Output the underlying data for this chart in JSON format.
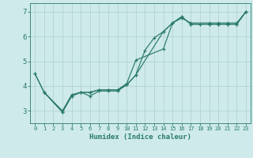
{
  "xlabel": "Humidex (Indice chaleur)",
  "bg_color": "#ceeaea",
  "line_color": "#2a7a6a",
  "grid_color": "#aed0d0",
  "xlim": [
    -0.5,
    23.5
  ],
  "ylim": [
    2.5,
    7.35
  ],
  "yticks": [
    3,
    4,
    5,
    6,
    7
  ],
  "xticks": [
    0,
    1,
    2,
    3,
    4,
    5,
    6,
    7,
    8,
    9,
    10,
    11,
    12,
    13,
    14,
    15,
    16,
    17,
    18,
    19,
    20,
    21,
    22,
    23
  ],
  "series": [
    {
      "x": [
        0,
        1,
        3,
        4,
        5,
        6,
        7,
        8,
        9,
        10,
        11,
        14,
        15,
        16,
        17,
        19,
        20,
        21,
        22,
        23
      ],
      "y": [
        4.5,
        3.75,
        3.0,
        3.65,
        3.75,
        3.75,
        3.85,
        3.85,
        3.85,
        4.1,
        5.05,
        5.5,
        6.55,
        6.75,
        6.55,
        6.55,
        6.55,
        6.55,
        6.55,
        7.0
      ]
    },
    {
      "x": [
        1,
        3,
        4,
        5,
        6,
        7,
        8,
        9,
        10,
        11,
        12,
        13,
        14,
        15,
        16,
        17,
        18,
        19,
        20,
        21,
        22,
        23
      ],
      "y": [
        3.75,
        2.95,
        3.6,
        3.75,
        3.6,
        3.8,
        3.8,
        3.8,
        4.05,
        4.45,
        5.45,
        5.95,
        6.2,
        6.55,
        6.8,
        6.5,
        6.5,
        6.5,
        6.5,
        6.5,
        6.5,
        7.0
      ]
    },
    {
      "x": [
        0,
        1,
        3,
        4,
        5,
        6,
        7,
        8,
        9,
        10,
        11,
        14,
        15,
        16,
        17,
        19,
        20,
        21,
        22,
        23
      ],
      "y": [
        4.5,
        3.75,
        2.95,
        3.6,
        3.75,
        3.75,
        3.85,
        3.85,
        3.85,
        4.05,
        4.45,
        6.2,
        6.55,
        6.8,
        6.5,
        6.5,
        6.5,
        6.5,
        6.5,
        7.0
      ]
    }
  ]
}
